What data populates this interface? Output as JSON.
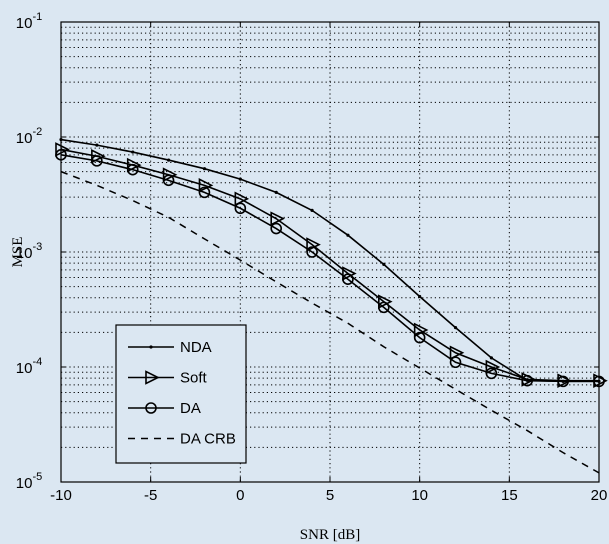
{
  "chart_data": {
    "type": "line",
    "title": "",
    "xlabel": "SNR [dB]",
    "ylabel": "MSE",
    "xlim": [
      -10,
      20
    ],
    "ylim": [
      1e-05,
      0.1
    ],
    "yscale": "log",
    "grid": true,
    "legend_position": "bottom-left",
    "x_ticks": [
      -10,
      -5,
      0,
      5,
      10,
      15,
      20
    ],
    "x_tick_labels": [
      "-10",
      "-5",
      "0",
      "5",
      "10",
      "15",
      "20"
    ],
    "y_ticks": [
      1e-05,
      0.0001,
      0.001,
      0.01,
      0.1
    ],
    "y_tick_bases": [
      "10",
      "10",
      "10",
      "10",
      "10"
    ],
    "y_tick_exponents": [
      "-5",
      "-4",
      "-3",
      "-2",
      "-1"
    ],
    "series": [
      {
        "name": "NDA",
        "marker": "point",
        "dashed": false,
        "x": [
          -10,
          -8,
          -6,
          -4,
          -2,
          0,
          2,
          4,
          6,
          8,
          10,
          12,
          14,
          16,
          18,
          20
        ],
        "y": [
          0.0095,
          0.0085,
          0.0074,
          0.0063,
          0.0053,
          0.0043,
          0.0033,
          0.0023,
          0.0014,
          0.00078,
          0.00041,
          0.00022,
          0.00012,
          7.65e-05,
          7.5e-05,
          7.5e-05
        ]
      },
      {
        "name": "Soft",
        "marker": "triangle-right",
        "dashed": false,
        "x": [
          -10,
          -8,
          -6,
          -4,
          -2,
          0,
          2,
          4,
          6,
          8,
          10,
          12,
          14,
          16,
          18,
          20
        ],
        "y": [
          0.0078,
          0.0068,
          0.0057,
          0.0047,
          0.0038,
          0.0029,
          0.00195,
          0.00116,
          0.00065,
          0.00037,
          0.00021,
          0.000133,
          0.0001,
          7.8e-05,
          7.6e-05,
          7.6e-05
        ]
      },
      {
        "name": "DA",
        "marker": "circle",
        "dashed": false,
        "x": [
          -10,
          -8,
          -6,
          -4,
          -2,
          0,
          2,
          4,
          6,
          8,
          10,
          12,
          14,
          16,
          18,
          20
        ],
        "y": [
          0.007,
          0.0062,
          0.0052,
          0.0042,
          0.0033,
          0.0024,
          0.0016,
          0.001,
          0.00058,
          0.00033,
          0.00018,
          0.00011,
          8.8e-05,
          7.6e-05,
          7.5e-05,
          7.5e-05
        ]
      },
      {
        "name": "DA CRB",
        "marker": "none",
        "dashed": true,
        "x": [
          -10,
          -8,
          -6,
          -4,
          -2,
          0,
          2,
          4,
          6,
          8,
          10,
          12,
          14,
          16,
          18,
          20
        ],
        "y": [
          0.005,
          0.0038,
          0.0028,
          0.002,
          0.0013,
          0.00085,
          0.00055,
          0.00036,
          0.00024,
          0.00015,
          9.8e-05,
          6.4e-05,
          4.2e-05,
          2.8e-05,
          1.8e-05,
          1.2e-05
        ]
      }
    ]
  }
}
